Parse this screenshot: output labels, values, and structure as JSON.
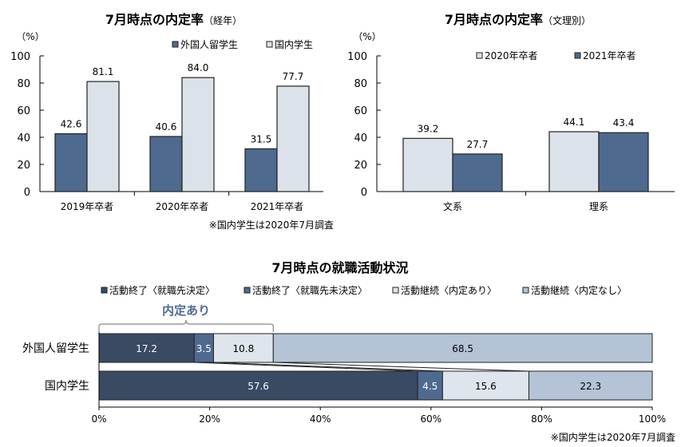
{
  "colors": {
    "foreign": "#4e6a8f",
    "domestic": "#dbe2ea",
    "dark": "#3a4a63",
    "mid": "#4e6a8f",
    "light1": "#dfe5ec",
    "light2": "#b4c3d6",
    "bracket": "#4e6a9a"
  },
  "chart_data": [
    {
      "type": "bar",
      "title": "7月時点の内定率",
      "subtitle": "（経年）",
      "unit": "（%）",
      "ylim": [
        0,
        100
      ],
      "yticks": [
        0,
        20,
        40,
        60,
        80,
        100
      ],
      "categories": [
        "2019年卒者",
        "2020年卒者",
        "2021年卒者"
      ],
      "series": [
        {
          "name": "外国人留学生",
          "values": [
            42.6,
            40.6,
            31.5
          ]
        },
        {
          "name": "国内学生",
          "values": [
            81.1,
            84.0,
            77.7
          ]
        }
      ],
      "note": "※国内学生は2020年7月調査",
      "legend": "top-right"
    },
    {
      "type": "bar",
      "title": "7月時点の内定率",
      "subtitle": "（文理別）",
      "unit": "（%）",
      "ylim": [
        0,
        100
      ],
      "yticks": [
        0,
        20,
        40,
        60,
        80,
        100
      ],
      "categories": [
        "文系",
        "理系"
      ],
      "series": [
        {
          "name": "2020年卒者",
          "values": [
            39.2,
            44.1
          ]
        },
        {
          "name": "2021年卒者",
          "values": [
            27.7,
            43.4
          ]
        }
      ],
      "legend": "top"
    },
    {
      "type": "bar",
      "orientation": "horizontal-stacked",
      "title": "7月時点の就職活動状況",
      "categories": [
        "外国人留学生",
        "国内学生"
      ],
      "series": [
        {
          "name": "活動終了〈就職先決定〉",
          "values": [
            17.2,
            57.6
          ]
        },
        {
          "name": "活動終了〈就職先未決定〉",
          "values": [
            3.5,
            4.5
          ]
        },
        {
          "name": "活動継続〈内定あり〉",
          "values": [
            10.8,
            15.6
          ]
        },
        {
          "name": "活動継続〈内定なし〉",
          "values": [
            68.5,
            22.3
          ]
        }
      ],
      "xticks": [
        "0%",
        "20%",
        "40%",
        "60%",
        "80%",
        "100%"
      ],
      "xlim": [
        0,
        100
      ],
      "annotation": "内定あり",
      "note": "※国内学生は2020年7月調査",
      "legend": "top"
    }
  ]
}
